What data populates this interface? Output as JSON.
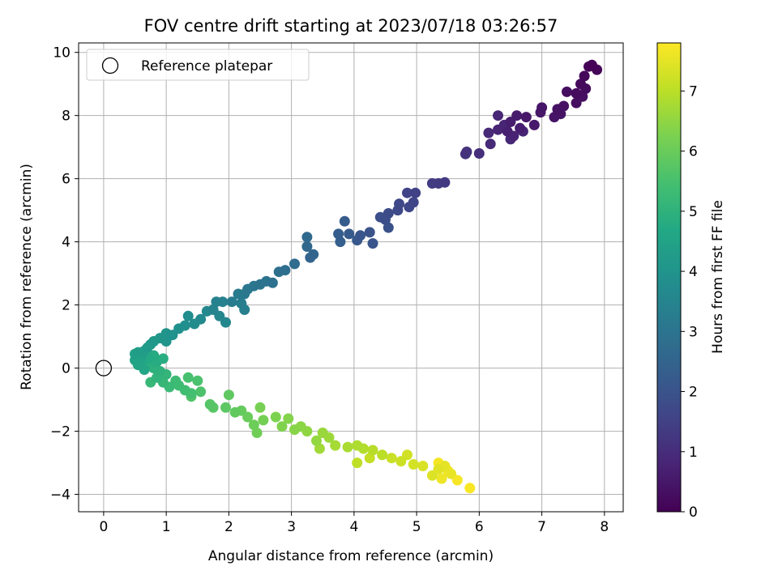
{
  "chart_data": {
    "type": "scatter",
    "title": "FOV centre drift starting at 2023/07/18 03:26:57",
    "xlabel": "Angular distance from reference (arcmin)",
    "ylabel": "Rotation from reference (arcmin)",
    "xlim": [
      -0.4,
      8.3
    ],
    "ylim": [
      -4.55,
      10.3
    ],
    "xticks": [
      0,
      1,
      2,
      3,
      4,
      5,
      6,
      7,
      8
    ],
    "yticks": [
      -4,
      -2,
      0,
      2,
      4,
      6,
      8,
      10
    ],
    "ytick_labels": [
      "−4",
      "−2",
      "0",
      "2",
      "4",
      "6",
      "8",
      "10"
    ],
    "grid": true,
    "legend": {
      "position": "top-left",
      "entries": [
        {
          "label": "Reference platepar",
          "marker": "open-circle",
          "x": 0,
          "y": 0
        }
      ]
    },
    "colorbar": {
      "label": "Hours from first FF file",
      "colormap": "viridis",
      "range": [
        0,
        7.8
      ],
      "ticks": [
        0,
        1,
        2,
        3,
        4,
        5,
        6,
        7
      ]
    },
    "points": [
      [
        7.8,
        9.6,
        0.05
      ],
      [
        7.88,
        9.45,
        0.08
      ],
      [
        7.75,
        9.55,
        0.1
      ],
      [
        7.68,
        9.25,
        0.15
      ],
      [
        7.62,
        9.0,
        0.2
      ],
      [
        7.7,
        8.85,
        0.22
      ],
      [
        7.55,
        8.7,
        0.25
      ],
      [
        7.4,
        8.75,
        0.28
      ],
      [
        7.65,
        8.6,
        0.3
      ],
      [
        7.55,
        8.4,
        0.32
      ],
      [
        7.35,
        8.3,
        0.35
      ],
      [
        7.25,
        8.2,
        0.38
      ],
      [
        7.3,
        8.05,
        0.4
      ],
      [
        7.2,
        7.95,
        0.42
      ],
      [
        7.0,
        8.25,
        0.45
      ],
      [
        6.98,
        8.1,
        0.48
      ],
      [
        6.75,
        7.95,
        0.5
      ],
      [
        6.88,
        7.7,
        0.55
      ],
      [
        6.6,
        8.0,
        0.6
      ],
      [
        6.5,
        7.8,
        0.62
      ],
      [
        6.65,
        7.6,
        0.65
      ],
      [
        6.45,
        7.5,
        0.7
      ],
      [
        6.55,
        7.35,
        0.75
      ],
      [
        6.7,
        7.5,
        0.78
      ],
      [
        6.3,
        7.55,
        0.8
      ],
      [
        6.4,
        7.7,
        0.82
      ],
      [
        6.3,
        8.0,
        0.85
      ],
      [
        6.5,
        7.25,
        0.88
      ],
      [
        6.15,
        7.45,
        0.9
      ],
      [
        6.18,
        7.1,
        0.95
      ],
      [
        6.0,
        6.8,
        1.05
      ],
      [
        5.8,
        6.85,
        1.1
      ],
      [
        5.78,
        6.78,
        1.15
      ],
      [
        5.45,
        5.88,
        1.3
      ],
      [
        5.35,
        5.85,
        1.35
      ],
      [
        5.25,
        5.85,
        1.4
      ],
      [
        4.98,
        5.55,
        1.5
      ],
      [
        4.85,
        5.55,
        1.55
      ],
      [
        4.95,
        5.25,
        1.6
      ],
      [
        4.88,
        5.1,
        1.65
      ],
      [
        4.72,
        5.2,
        1.7
      ],
      [
        4.7,
        5.0,
        1.75
      ],
      [
        4.55,
        4.9,
        1.8
      ],
      [
        4.5,
        4.7,
        1.85
      ],
      [
        4.42,
        4.78,
        1.9
      ],
      [
        4.55,
        4.45,
        1.95
      ],
      [
        4.25,
        4.3,
        2.0
      ],
      [
        4.3,
        3.95,
        2.05
      ],
      [
        4.1,
        4.2,
        2.1
      ],
      [
        4.05,
        4.05,
        2.15
      ],
      [
        3.92,
        4.25,
        2.2
      ],
      [
        3.85,
        4.65,
        2.25
      ],
      [
        3.75,
        4.25,
        2.3
      ],
      [
        3.78,
        4.0,
        2.35
      ],
      [
        3.3,
        3.5,
        2.5
      ],
      [
        3.35,
        3.6,
        2.55
      ],
      [
        3.25,
        3.85,
        2.6
      ],
      [
        3.25,
        4.15,
        2.65
      ],
      [
        3.05,
        3.3,
        2.75
      ],
      [
        2.9,
        3.1,
        2.8
      ],
      [
        2.8,
        3.05,
        2.85
      ],
      [
        2.7,
        2.7,
        2.9
      ],
      [
        2.6,
        2.75,
        2.95
      ],
      [
        2.5,
        2.65,
        3.0
      ],
      [
        2.4,
        2.6,
        3.05
      ],
      [
        2.3,
        2.5,
        3.1
      ],
      [
        2.25,
        2.35,
        3.15
      ],
      [
        2.15,
        2.35,
        3.2
      ],
      [
        2.05,
        2.1,
        3.25
      ],
      [
        2.2,
        2.05,
        3.3
      ],
      [
        2.25,
        1.85,
        3.35
      ],
      [
        1.9,
        2.1,
        3.4
      ],
      [
        1.8,
        2.1,
        3.45
      ],
      [
        1.75,
        1.85,
        3.5
      ],
      [
        1.85,
        1.65,
        3.55
      ],
      [
        1.95,
        1.45,
        3.6
      ],
      [
        1.65,
        1.8,
        3.65
      ],
      [
        1.55,
        1.55,
        3.7
      ],
      [
        1.45,
        1.4,
        3.75
      ],
      [
        1.35,
        1.65,
        3.8
      ],
      [
        1.3,
        1.35,
        3.85
      ],
      [
        1.2,
        1.25,
        3.9
      ],
      [
        1.1,
        1.05,
        3.95
      ],
      [
        1.0,
        1.1,
        4.0
      ],
      [
        1.0,
        0.85,
        4.05
      ],
      [
        0.9,
        0.95,
        4.1
      ],
      [
        0.8,
        0.85,
        4.15
      ],
      [
        0.75,
        0.75,
        4.2
      ],
      [
        0.7,
        0.65,
        4.25
      ],
      [
        0.65,
        0.55,
        4.3
      ],
      [
        0.55,
        0.5,
        4.35
      ],
      [
        0.5,
        0.45,
        4.4
      ],
      [
        0.6,
        0.35,
        4.45
      ],
      [
        0.5,
        0.25,
        4.5
      ],
      [
        0.55,
        0.1,
        4.55
      ],
      [
        0.65,
        -0.05,
        4.6
      ],
      [
        0.6,
        0.2,
        4.65
      ],
      [
        0.7,
        0.3,
        4.7
      ],
      [
        0.8,
        0.4,
        4.75
      ],
      [
        0.85,
        0.2,
        4.8
      ],
      [
        0.95,
        0.3,
        4.85
      ],
      [
        0.75,
        0.15,
        4.9
      ],
      [
        0.8,
        0.0,
        4.95
      ],
      [
        0.9,
        -0.1,
        5.0
      ],
      [
        0.85,
        -0.3,
        5.05
      ],
      [
        1.0,
        -0.2,
        5.1
      ],
      [
        0.95,
        -0.45,
        5.15
      ],
      [
        0.75,
        -0.45,
        5.2
      ],
      [
        1.05,
        -0.6,
        5.25
      ],
      [
        1.15,
        -0.4,
        5.3
      ],
      [
        1.2,
        -0.55,
        5.35
      ],
      [
        1.3,
        -0.7,
        5.4
      ],
      [
        1.4,
        -0.8,
        5.45
      ],
      [
        1.35,
        -0.3,
        5.5
      ],
      [
        1.5,
        -0.4,
        5.55
      ],
      [
        1.55,
        -0.75,
        5.6
      ],
      [
        1.4,
        -0.9,
        5.65
      ],
      [
        1.7,
        -1.15,
        5.7
      ],
      [
        1.75,
        -1.25,
        5.75
      ],
      [
        1.95,
        -1.25,
        5.8
      ],
      [
        2.0,
        -0.85,
        5.85
      ],
      [
        2.1,
        -1.4,
        5.9
      ],
      [
        2.2,
        -1.35,
        5.95
      ],
      [
        2.3,
        -1.55,
        6.0
      ],
      [
        2.4,
        -1.8,
        6.05
      ],
      [
        2.45,
        -2.05,
        6.1
      ],
      [
        2.55,
        -1.65,
        6.15
      ],
      [
        2.5,
        -1.25,
        6.2
      ],
      [
        2.75,
        -1.55,
        6.25
      ],
      [
        2.85,
        -1.85,
        6.3
      ],
      [
        2.95,
        -1.6,
        6.35
      ],
      [
        3.05,
        -1.95,
        6.4
      ],
      [
        3.15,
        -1.85,
        6.45
      ],
      [
        3.25,
        -2.0,
        6.5
      ],
      [
        3.4,
        -2.3,
        6.55
      ],
      [
        3.5,
        -2.05,
        6.6
      ],
      [
        3.6,
        -2.2,
        6.65
      ],
      [
        3.45,
        -2.55,
        6.7
      ],
      [
        3.7,
        -2.45,
        6.75
      ],
      [
        3.9,
        -2.5,
        6.8
      ],
      [
        4.05,
        -2.45,
        6.85
      ],
      [
        4.15,
        -2.55,
        6.9
      ],
      [
        4.3,
        -2.6,
        6.95
      ],
      [
        4.45,
        -2.75,
        7.0
      ],
      [
        4.05,
        -3.0,
        7.05
      ],
      [
        4.25,
        -2.85,
        7.1
      ],
      [
        4.6,
        -2.85,
        7.15
      ],
      [
        4.75,
        -2.95,
        7.2
      ],
      [
        4.85,
        -2.75,
        7.25
      ],
      [
        4.95,
        -3.05,
        7.3
      ],
      [
        5.1,
        -3.1,
        7.35
      ],
      [
        5.25,
        -3.4,
        7.4
      ],
      [
        5.35,
        -3.2,
        7.45
      ],
      [
        5.45,
        -3.1,
        7.5
      ],
      [
        5.55,
        -3.35,
        7.55
      ],
      [
        5.4,
        -3.5,
        7.6
      ],
      [
        5.5,
        -3.25,
        7.65
      ],
      [
        5.35,
        -3.0,
        7.7
      ],
      [
        5.65,
        -3.55,
        7.72
      ],
      [
        5.85,
        -3.8,
        7.75
      ]
    ]
  }
}
